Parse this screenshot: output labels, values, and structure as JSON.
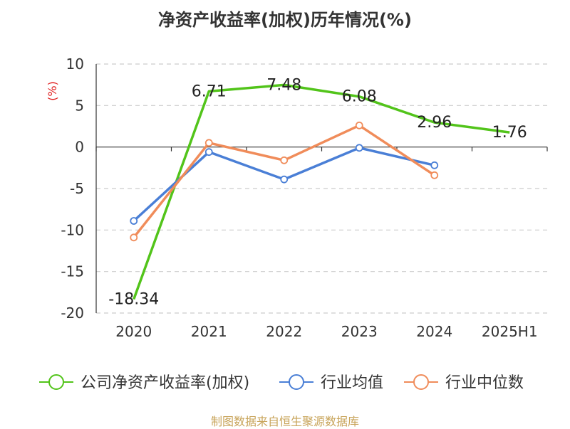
{
  "chart_data": {
    "type": "line",
    "title": "净资产收益率(加权)历年情况(%)",
    "ylabel": "(%)",
    "categories": [
      "2020",
      "2021",
      "2022",
      "2023",
      "2024",
      "2025H1"
    ],
    "ylim": [
      -20,
      10
    ],
    "yticks": [
      10,
      5,
      0,
      -5,
      -10,
      -15,
      -20
    ],
    "grid": true,
    "legend_position": "bottom",
    "series": [
      {
        "name": "公司净资产收益率(加权)",
        "color": "#52c41a",
        "values": [
          -18.34,
          6.71,
          7.48,
          6.08,
          2.96,
          1.76
        ],
        "show_labels": true,
        "markers": false
      },
      {
        "name": "行业均值",
        "color": "#4a7fd6",
        "values": [
          -8.9,
          -0.6,
          -3.9,
          -0.1,
          -2.2,
          null
        ],
        "show_labels": false,
        "markers": true
      },
      {
        "name": "行业中位数",
        "color": "#f08c5a",
        "values": [
          -10.9,
          0.5,
          -1.6,
          2.6,
          -3.4,
          null
        ],
        "show_labels": false,
        "markers": true
      }
    ],
    "data_labels": [
      "-18.34",
      "6.71",
      "7.48",
      "6.08",
      "2.96",
      "1.76"
    ]
  },
  "footer": {
    "source": "制图数据来自恒生聚源数据库"
  }
}
